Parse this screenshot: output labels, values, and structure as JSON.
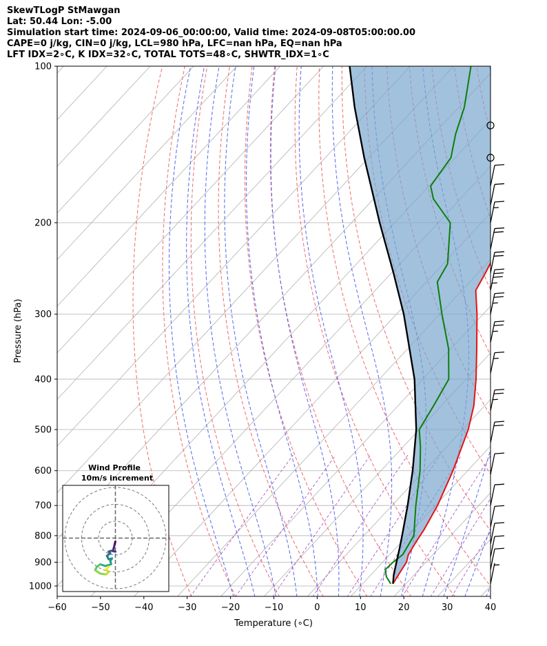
{
  "header": {
    "line1": "SkewTLogP StMawgan",
    "line2": "Lat: 50.44   Lon: -5.00",
    "line3": "Simulation start time: 2024-09-06_00:00:00, Valid time: 2024-09-08T05:00:00.00",
    "line4": "CAPE=0 j/kg, CIN=0 j/kg, LCL=980 hPa, LFC=nan hPa, EQ=nan hPa",
    "line5": "LFT IDX=2∘C, K IDX=32∘C, TOTAL TOTS=48∘C, SHWTR_IDX=1∘C"
  },
  "chart_data": {
    "type": "skew-t log-p",
    "xlabel": "Temperature (∘C)",
    "ylabel": "Pressure (hPa)",
    "xlim": [
      -60,
      40
    ],
    "ylim": [
      1050,
      100
    ],
    "x_ticks": [
      -60,
      -50,
      -40,
      -30,
      -20,
      -10,
      0,
      10,
      20,
      30,
      40
    ],
    "y_ticks": [
      1000,
      900,
      800,
      700,
      600,
      500,
      400,
      300,
      200,
      100
    ],
    "grid": true,
    "temperature": [
      {
        "p": 990,
        "t": 17.0
      },
      {
        "p": 960,
        "t": 16.5
      },
      {
        "p": 930,
        "t": 16.0
      },
      {
        "p": 900,
        "t": 15.5
      },
      {
        "p": 870,
        "t": 14.3
      },
      {
        "p": 820,
        "t": 13.3
      },
      {
        "p": 780,
        "t": 12.6
      },
      {
        "p": 700,
        "t": 10.5
      },
      {
        "p": 600,
        "t": 6.6
      },
      {
        "p": 500,
        "t": 1.3
      },
      {
        "p": 450,
        "t": -2.5
      },
      {
        "p": 400,
        "t": -7.7
      },
      {
        "p": 350,
        "t": -14.0
      },
      {
        "p": 300,
        "t": -21.4
      },
      {
        "p": 270,
        "t": -26.8
      },
      {
        "p": 250,
        "t": -28.3
      },
      {
        "p": 225,
        "t": -30.6
      },
      {
        "p": 200,
        "t": -31.6
      },
      {
        "p": 180,
        "t": -34.8
      },
      {
        "p": 160,
        "t": -40.8
      },
      {
        "p": 140,
        "t": -47.8
      },
      {
        "p": 125,
        "t": -54.6
      },
      {
        "p": 110,
        "t": -61.2
      },
      {
        "p": 100,
        "t": -64.6
      }
    ],
    "dewpoint": [
      {
        "p": 990,
        "t": 16.5
      },
      {
        "p": 960,
        "t": 14.0
      },
      {
        "p": 930,
        "t": 12.2
      },
      {
        "p": 900,
        "t": 12.4
      },
      {
        "p": 870,
        "t": 13.0
      },
      {
        "p": 800,
        "t": 11.5
      },
      {
        "p": 700,
        "t": 5.5
      },
      {
        "p": 600,
        "t": -1.0
      },
      {
        "p": 540,
        "t": -6.0
      },
      {
        "p": 500,
        "t": -10.0
      },
      {
        "p": 450,
        "t": -11.8
      },
      {
        "p": 400,
        "t": -14.0
      },
      {
        "p": 350,
        "t": -20.5
      },
      {
        "p": 300,
        "t": -29.5
      },
      {
        "p": 260,
        "t": -37.5
      },
      {
        "p": 240,
        "t": -39.0
      },
      {
        "p": 200,
        "t": -47.2
      },
      {
        "p": 180,
        "t": -56.2
      },
      {
        "p": 170,
        "t": -59.6
      },
      {
        "p": 150,
        "t": -61.0
      },
      {
        "p": 135,
        "t": -65.0
      },
      {
        "p": 120,
        "t": -68.7
      },
      {
        "p": 100,
        "t": -76.0
      }
    ],
    "parcel": [
      {
        "p": 990,
        "t": 17.0
      },
      {
        "p": 950,
        "t": 15.2
      },
      {
        "p": 900,
        "t": 13.2
      },
      {
        "p": 850,
        "t": 11.1
      },
      {
        "p": 800,
        "t": 8.8
      },
      {
        "p": 700,
        "t": 3.6
      },
      {
        "p": 600,
        "t": -2.7
      },
      {
        "p": 500,
        "t": -10.7
      },
      {
        "p": 400,
        "t": -21.9
      },
      {
        "p": 300,
        "t": -38.3
      },
      {
        "p": 250,
        "t": -49.5
      },
      {
        "p": 200,
        "t": -63.5
      },
      {
        "p": 150,
        "t": -81.0
      },
      {
        "p": 120,
        "t": -94.0
      },
      {
        "p": 100,
        "t": -104.0
      }
    ],
    "wind_barbs": [
      {
        "p": 130,
        "speed_kt": 0
      },
      {
        "p": 150,
        "speed_kt": 0
      },
      {
        "p": 170,
        "speed_kt": 10
      },
      {
        "p": 185,
        "speed_kt": 10
      },
      {
        "p": 200,
        "speed_kt": 15
      },
      {
        "p": 225,
        "speed_kt": 20
      },
      {
        "p": 250,
        "speed_kt": 20
      },
      {
        "p": 270,
        "speed_kt": 35
      },
      {
        "p": 300,
        "speed_kt": 25
      },
      {
        "p": 340,
        "speed_kt": 25
      },
      {
        "p": 390,
        "speed_kt": 15
      },
      {
        "p": 460,
        "speed_kt": 25
      },
      {
        "p": 530,
        "speed_kt": 20
      },
      {
        "p": 610,
        "speed_kt": 10
      },
      {
        "p": 700,
        "speed_kt": 10
      },
      {
        "p": 770,
        "speed_kt": 10
      },
      {
        "p": 830,
        "speed_kt": 10
      },
      {
        "p": 880,
        "speed_kt": 10
      },
      {
        "p": 930,
        "speed_kt": 10
      },
      {
        "p": 990,
        "speed_kt": 5
      }
    ],
    "hodograph": {
      "title_line1": "Wind Profile",
      "title_line2": "10m/s increment",
      "ring_step_ms": 10,
      "points": [
        {
          "u": 0.0,
          "v": 2.0
        },
        {
          "u": -0.5,
          "v": 4.0
        },
        {
          "u": -1.0,
          "v": 6.0
        },
        {
          "u": -1.5,
          "v": 7.5
        },
        {
          "u": 0.0,
          "v": 8.0
        },
        {
          "u": -2.5,
          "v": 7.5
        },
        {
          "u": -4.0,
          "v": 8.0
        },
        {
          "u": -3.0,
          "v": 9.0
        },
        {
          "u": -5.0,
          "v": 10.5
        },
        {
          "u": -4.0,
          "v": 12.5
        },
        {
          "u": -2.0,
          "v": 12.0
        },
        {
          "u": -3.0,
          "v": 13.5
        },
        {
          "u": -2.5,
          "v": 15.5
        },
        {
          "u": -6.0,
          "v": 16.5
        },
        {
          "u": -9.0,
          "v": 15.5
        },
        {
          "u": -11.0,
          "v": 17.0
        },
        {
          "u": -12.0,
          "v": 19.0
        },
        {
          "u": -9.0,
          "v": 21.0
        },
        {
          "u": -5.5,
          "v": 21.5
        },
        {
          "u": -4.0,
          "v": 20.0
        },
        {
          "u": -5.5,
          "v": 18.5
        },
        {
          "u": -4.0,
          "v": 17.0
        }
      ]
    }
  }
}
